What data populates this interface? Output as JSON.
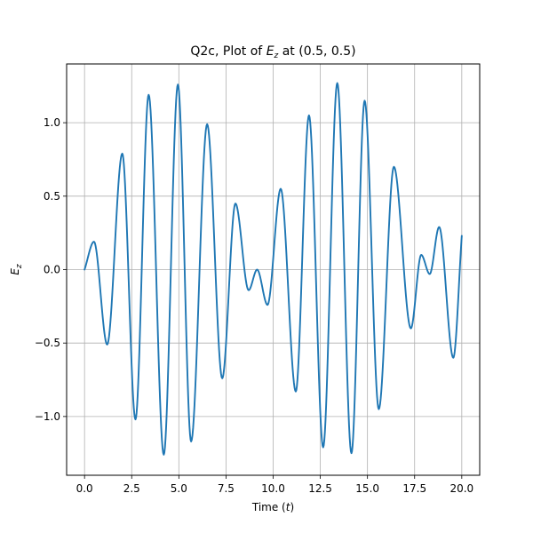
{
  "chart_data": {
    "type": "line",
    "title": {
      "prefix": "Q2c, Plot of ",
      "var": "E",
      "var_sub": "z",
      "suffix": " at (0.5, 0.5)"
    },
    "xlabel": {
      "prefix": "Time (",
      "var": "t",
      "suffix": ")"
    },
    "ylabel": {
      "var": "E",
      "var_sub": "z"
    },
    "xlim": [
      -0.95,
      20.95
    ],
    "ylim": [
      -1.4,
      1.4
    ],
    "x_ticks": [
      0.0,
      2.5,
      5.0,
      7.5,
      10.0,
      12.5,
      15.0,
      17.5,
      20.0
    ],
    "x_tick_labels": [
      "0.0",
      "2.5",
      "5.0",
      "7.5",
      "10.0",
      "12.5",
      "15.0",
      "17.5",
      "20.0"
    ],
    "y_ticks": [
      -1.0,
      -0.5,
      0.0,
      0.5,
      1.0
    ],
    "y_tick_labels": [
      "−1.0",
      "−0.5",
      "0.0",
      "0.5",
      "1.0"
    ],
    "grid": true,
    "line_color": "#1f77b4",
    "grid_color": "#b0b0b0",
    "series": [
      {
        "x": [
          0.0,
          0.5,
          1.2,
          2.0,
          2.7,
          3.4,
          4.2,
          4.95,
          5.65,
          6.5,
          7.3,
          8.0,
          8.7,
          9.15,
          9.7,
          10.4,
          11.2,
          11.9,
          12.65,
          13.4,
          14.15,
          14.85,
          15.6,
          16.4,
          17.3,
          17.85,
          18.3,
          18.8,
          19.55,
          20.0
        ],
        "y": [
          0.0,
          0.19,
          -0.51,
          0.79,
          -1.02,
          1.19,
          -1.26,
          1.26,
          -1.17,
          0.99,
          -0.74,
          0.45,
          -0.14,
          0.0,
          -0.24,
          0.55,
          -0.83,
          1.05,
          -1.21,
          1.27,
          -1.25,
          1.15,
          -0.95,
          0.7,
          -0.4,
          0.1,
          -0.03,
          0.29,
          -0.6,
          0.23
        ]
      }
    ]
  }
}
